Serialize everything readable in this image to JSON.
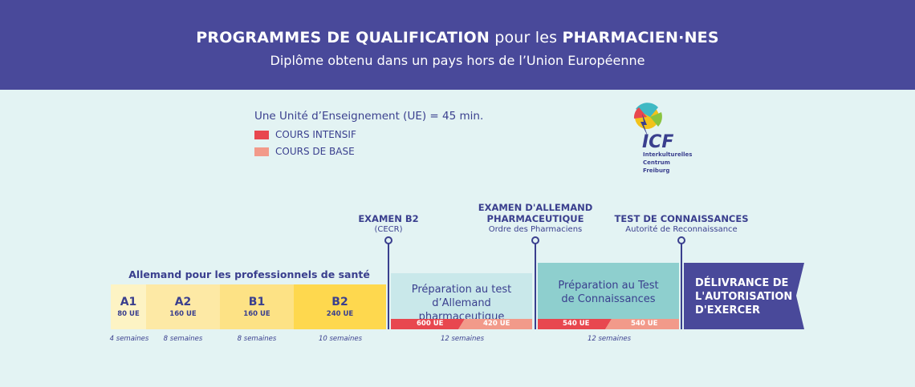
{
  "header": {
    "title_bold": "PROGRAMMES DE QUALIFICATION",
    "title_mid": " pour les ",
    "title_end": "PHARMACIEN·NES",
    "subtitle": "Diplôme obtenu dans un pays hors de l’Union Européenne"
  },
  "legend": {
    "unit_text": "Une Unité d’Enseignement (UE) = 45 min.",
    "intensive_label": "COURS INTENSIF",
    "basic_label": "COURS DE BASE",
    "intensive_color": "#e8474f",
    "basic_color": "#f29a8a"
  },
  "logo": {
    "acronym": "ICF",
    "line1": "Interkulturelles",
    "line2": "Centrum",
    "line3": "Freiburg"
  },
  "milestones": {
    "b2": {
      "title": "EXAMEN B2",
      "sub": "(CECR)"
    },
    "pharma": {
      "title1": "EXAMEN D'ALLEMAND",
      "title2": "PHARMACEUTIQUE",
      "sub": "Ordre des Pharmaciens"
    },
    "test": {
      "title": "TEST DE CONNAISSANCES",
      "sub": "Autorité de Reconnaissance"
    }
  },
  "section_label": "Allemand pour les professionnels de santé",
  "levels": [
    {
      "name": "A1",
      "ue": "80 UE",
      "weeks": "4 semaines",
      "color": "#fdf3c4"
    },
    {
      "name": "A2",
      "ue": "160 UE",
      "weeks": "8 semaines",
      "color": "#fde9a5"
    },
    {
      "name": "B1",
      "ue": "160 UE",
      "weeks": "8 semaines",
      "color": "#fde285"
    },
    {
      "name": "B2",
      "ue": "240 UE",
      "weeks": "10 semaines",
      "color": "#fed84e"
    }
  ],
  "prep1": {
    "line1": "Préparation au test",
    "line2": "d’Allemand pharmaceutique",
    "intensive_ue": "600 UE",
    "basic_ue": "420 UE",
    "weeks": "12 semaines"
  },
  "prep2": {
    "line1": "Préparation au Test",
    "line2": "de Connaissances",
    "intensive_ue": "540 UE",
    "basic_ue": "540 UE",
    "weeks": "12 semaines"
  },
  "final": {
    "line1": "DÉLIVRANCE DE",
    "line2": "L'AUTORISATION",
    "line3": "D'EXERCER"
  }
}
